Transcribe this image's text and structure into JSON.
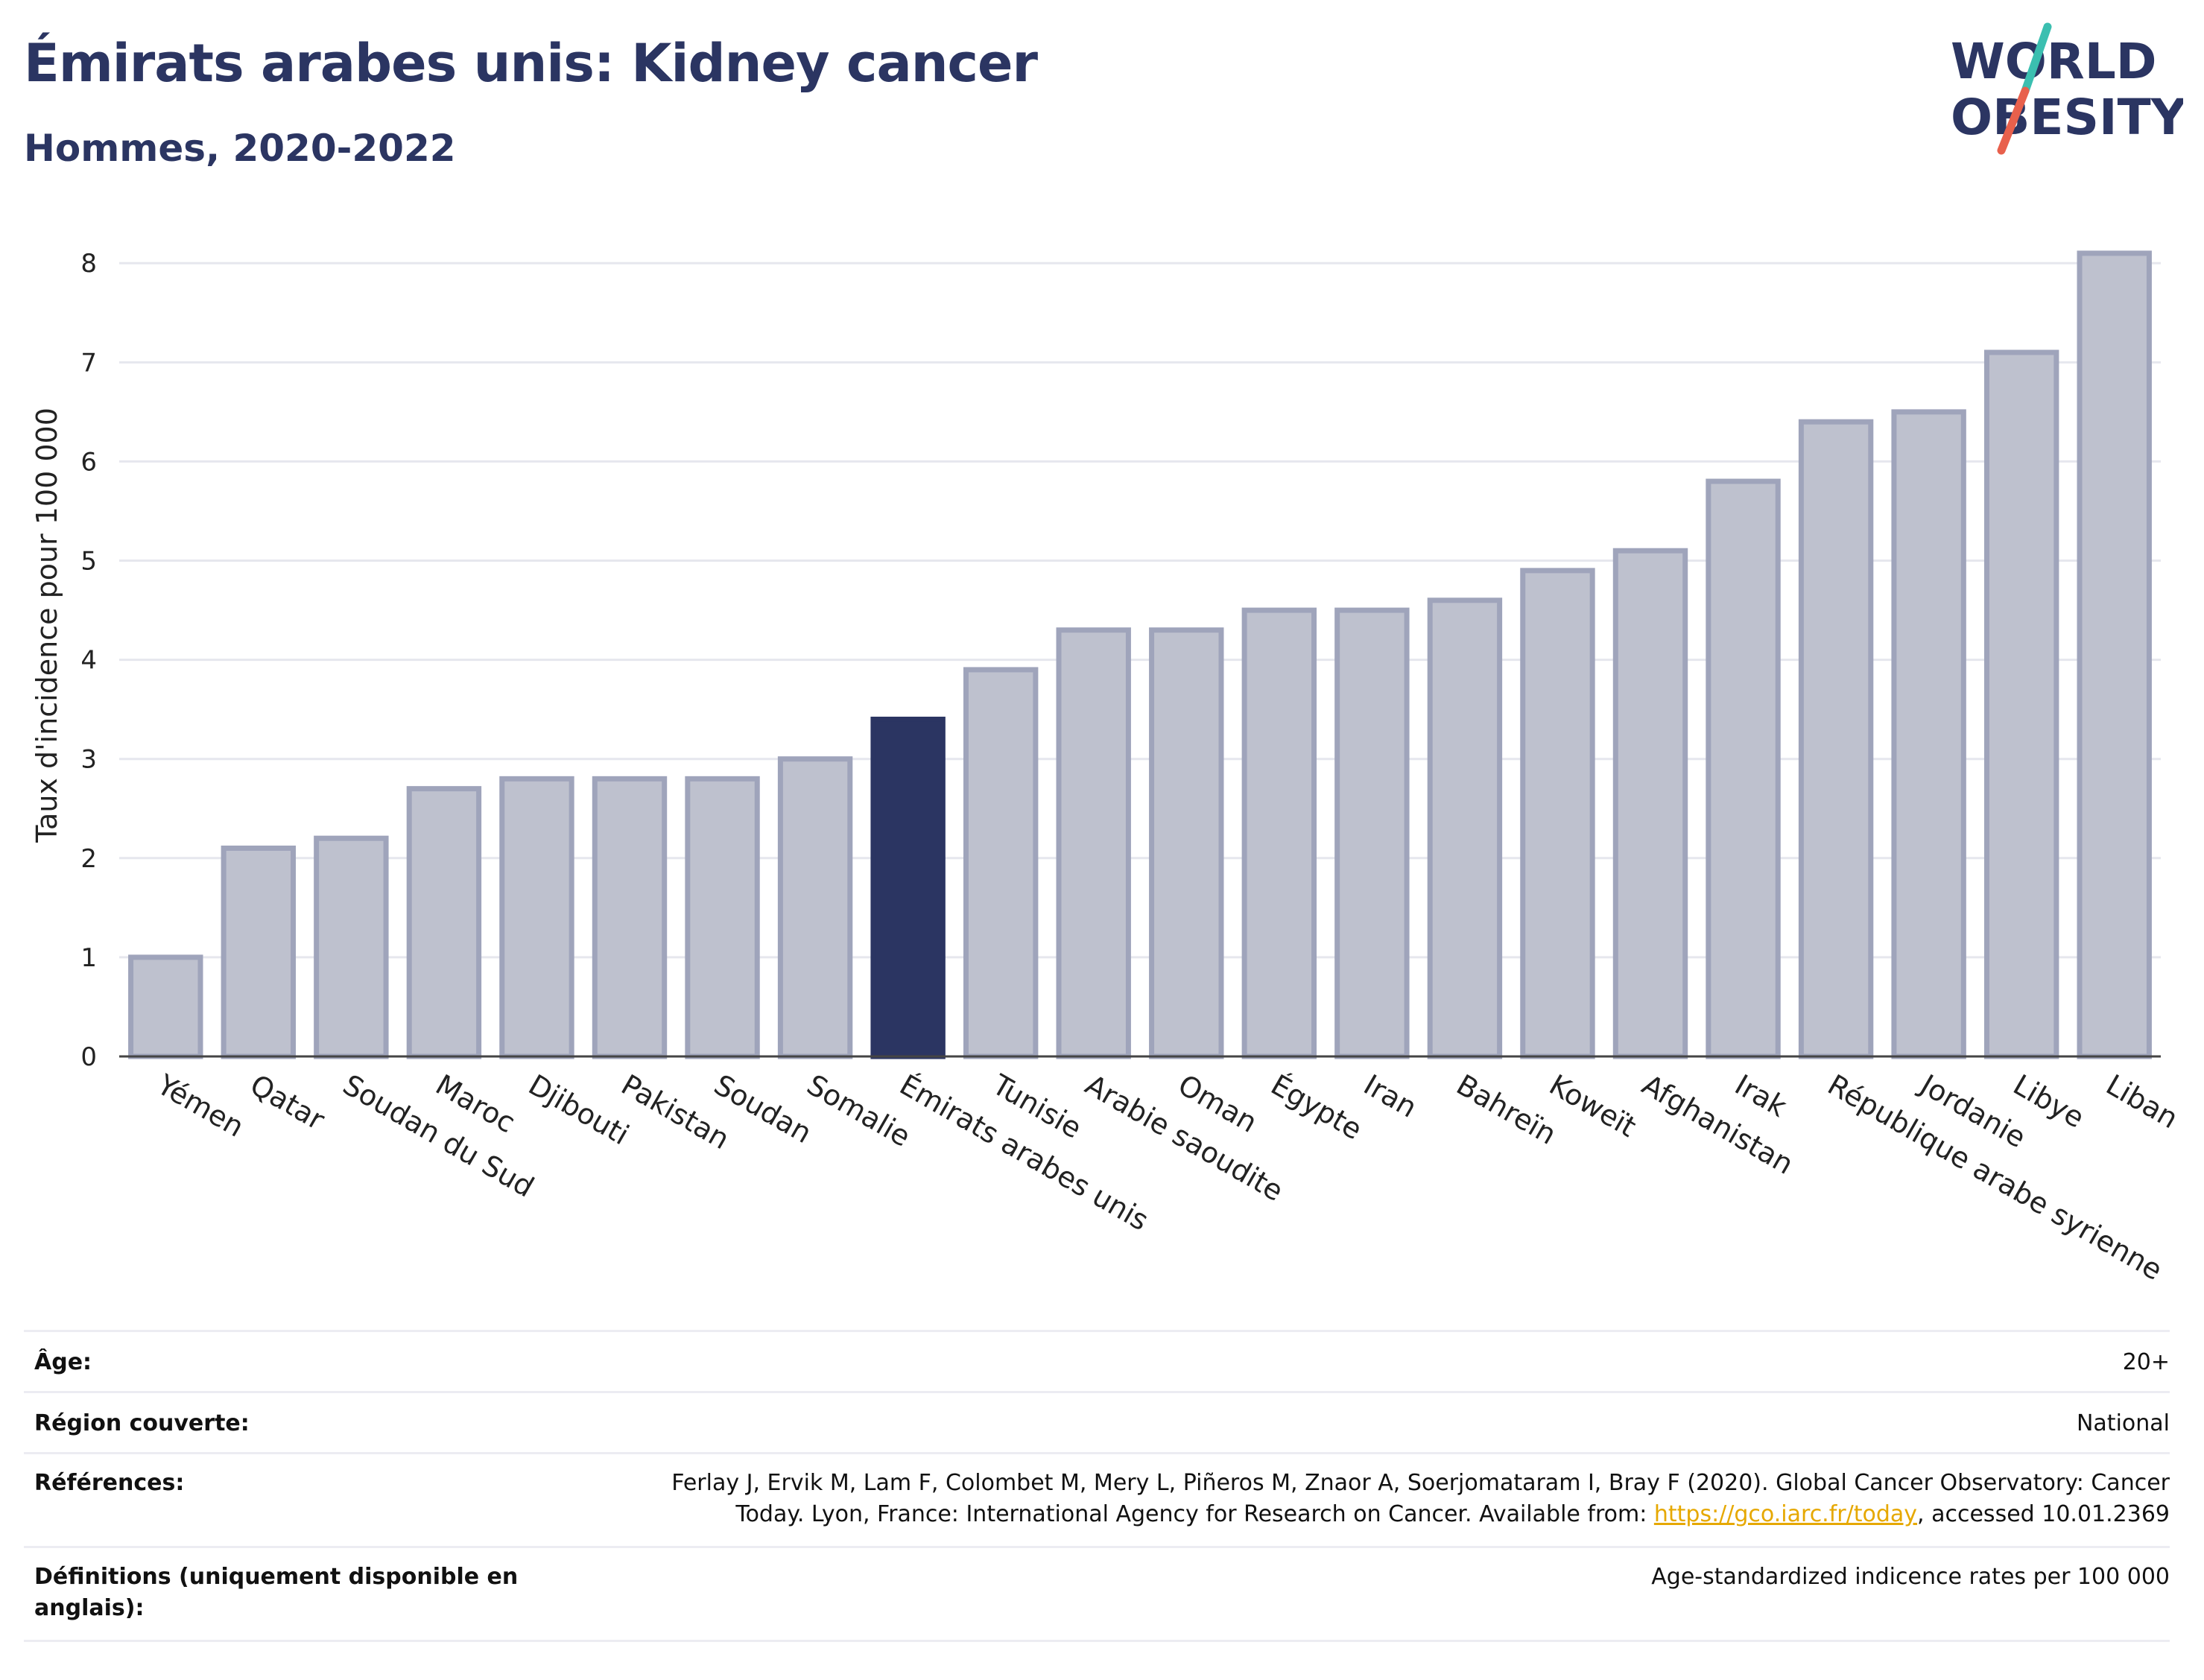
{
  "header": {
    "title": "Émirats arabes unis: Kidney cancer",
    "subtitle": "Hommes, 2020-2022"
  },
  "logo": {
    "line1": "WORLD",
    "line2": "OBESITY",
    "accent_teal": "#3bbfb0",
    "accent_red": "#e8604c",
    "text_color": "#2b3562"
  },
  "chart_data": {
    "type": "bar",
    "title": "Émirats arabes unis: Kidney cancer",
    "subtitle": "Hommes, 2020-2022",
    "ylabel": "Taux d'incidence pour 100 000",
    "xlabel": "",
    "ylim": [
      0,
      8.4
    ],
    "yticks": [
      0,
      1,
      2,
      3,
      4,
      5,
      6,
      7,
      8
    ],
    "grid": true,
    "highlight": "Émirats arabes unis",
    "bar_color": "#bec1ce",
    "bar_edge": "#9fa4bb",
    "highlight_color": "#2b3562",
    "categories": [
      "Yémen",
      "Qatar",
      "Soudan du Sud",
      "Maroc",
      "Djibouti",
      "Pakistan",
      "Soudan",
      "Somalie",
      "Émirats arabes unis",
      "Tunisie",
      "Arabie saoudite",
      "Oman",
      "Égypte",
      "Iran",
      "Bahreïn",
      "Koweït",
      "Afghanistan",
      "Irak",
      "République arabe syrienne",
      "Jordanie",
      "Libye",
      "Liban"
    ],
    "values": [
      1.0,
      2.1,
      2.2,
      2.7,
      2.8,
      2.8,
      2.8,
      3.0,
      3.4,
      3.9,
      4.3,
      4.3,
      4.5,
      4.5,
      4.6,
      4.9,
      5.1,
      5.8,
      6.4,
      6.5,
      7.1,
      8.1
    ]
  },
  "info": {
    "age_label": "Âge:",
    "age_value": "20+",
    "region_label": "Région couverte:",
    "region_value": "National",
    "refs_label": "Références:",
    "refs_line1": "Ferlay J, Ervik M, Lam F, Colombet M, Mery L, Piñeros M, Znaor A, Soerjomataram I, Bray F (2020). Global Cancer Observatory: Cancer",
    "refs_line2_pre": "Today. Lyon, France: International Agency for Research on Cancer. Available from: ",
    "refs_link": "https://gco.iarc.fr/today",
    "refs_line2_post": ", accessed 10.01.2369",
    "defs_label": "Définitions (uniquement disponible en anglais):",
    "defs_value": "Age-standardized indicence rates per 100 000"
  }
}
